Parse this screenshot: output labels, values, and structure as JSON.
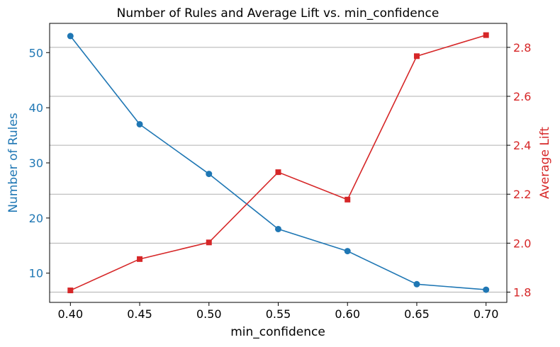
{
  "chart_data": {
    "type": "line",
    "title": "Number of Rules and Average Lift vs. min_confidence",
    "xlabel": "min_confidence",
    "ylabel_left": "Number of Rules",
    "ylabel_right": "Average Lift",
    "x": [
      0.4,
      0.45,
      0.5,
      0.55,
      0.6,
      0.65,
      0.7
    ],
    "x_tick_labels": [
      "0.40",
      "0.45",
      "0.50",
      "0.55",
      "0.60",
      "0.65",
      "0.70"
    ],
    "xlim": [
      0.385,
      0.715
    ],
    "y_left_ticks": [
      10,
      20,
      30,
      40,
      50
    ],
    "y_left_lim": [
      4.7,
      55.3
    ],
    "y_right_ticks": [
      "1.8",
      "2.0",
      "2.2",
      "2.4",
      "2.6",
      "2.8"
    ],
    "y_right_lim": [
      1.758,
      2.898
    ],
    "grid": "horizontal, right axis",
    "series": [
      {
        "axis": "left",
        "values": [
          53,
          37,
          28,
          18,
          14,
          8,
          7
        ],
        "color": "#1f77b4",
        "marker": "circle"
      },
      {
        "axis": "right",
        "values": [
          1.807,
          1.935,
          2.003,
          2.29,
          2.178,
          2.764,
          2.85
        ],
        "color": "#d62728",
        "marker": "square"
      }
    ]
  }
}
